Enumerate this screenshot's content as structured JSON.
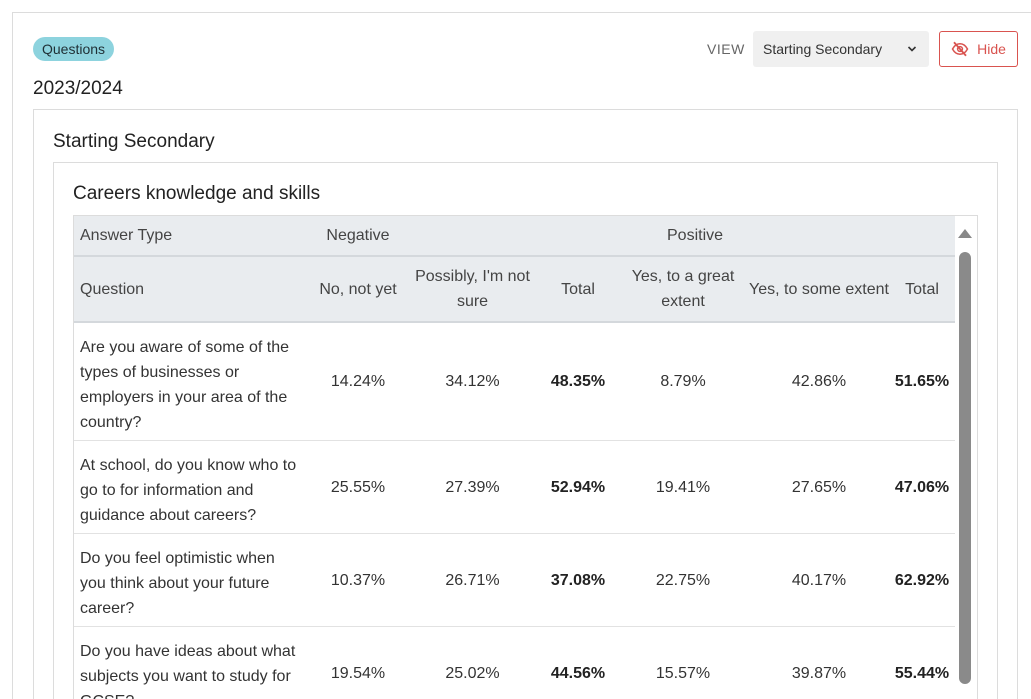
{
  "badge": "Questions",
  "view": {
    "label": "VIEW",
    "selected": "Starting Secondary"
  },
  "hide_button": {
    "label": "Hide"
  },
  "year": "2023/2024",
  "section_title": "Starting Secondary",
  "panel_title": "Careers knowledge and skills",
  "table": {
    "group_headers": [
      "Answer Type",
      "Negative",
      "Positive"
    ],
    "columns": [
      "Question",
      "No, not yet",
      "Possibly, I'm not sure",
      "Total",
      "Yes, to a great extent",
      "Yes, to some extent",
      "Total"
    ],
    "rows": [
      {
        "question": "Are you aware of some of the types of businesses or employers in your area of the country?",
        "no": "14.24%",
        "possibly": "34.12%",
        "neg_total": "48.35%",
        "great": "8.79%",
        "some": "42.86%",
        "pos_total": "51.65%"
      },
      {
        "question": "At school, do you know who to go to for information and guidance about careers?",
        "no": "25.55%",
        "possibly": "27.39%",
        "neg_total": "52.94%",
        "great": "19.41%",
        "some": "27.65%",
        "pos_total": "47.06%"
      },
      {
        "question": "Do you feel optimistic when you think about your future career?",
        "no": "10.37%",
        "possibly": "26.71%",
        "neg_total": "37.08%",
        "great": "22.75%",
        "some": "40.17%",
        "pos_total": "62.92%"
      },
      {
        "question": "Do you have ideas about what subjects you want to study for GCSE?",
        "no": "19.54%",
        "possibly": "25.02%",
        "neg_total": "44.56%",
        "great": "15.57%",
        "some": "39.87%",
        "pos_total": "55.44%"
      }
    ]
  },
  "colors": {
    "badge_bg": "#8dd3de",
    "hide_red": "#d9534f",
    "header_bg": "#e9ecef"
  }
}
